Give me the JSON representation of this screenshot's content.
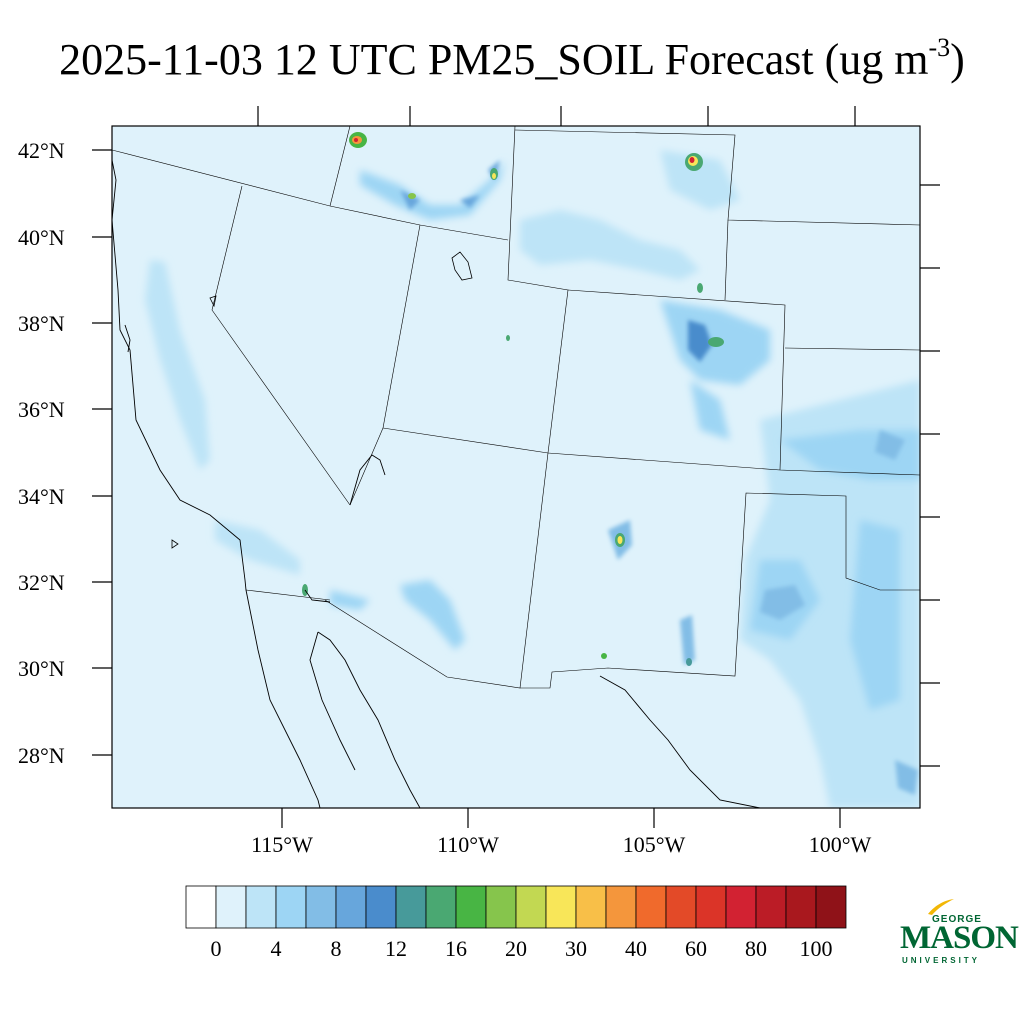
{
  "title": {
    "main": "2025-11-03 12 UTC PM25_SOIL Forecast (ug m",
    "superscript": "-3",
    "close": ")"
  },
  "map": {
    "lat_labels": [
      "42°N",
      "40°N",
      "38°N",
      "36°N",
      "34°N",
      "32°N",
      "30°N",
      "28°N"
    ],
    "lon_labels": [
      "115°W",
      "110°W",
      "105°W",
      "100°W"
    ],
    "background_color": "#dff2fb",
    "plumes": [
      {
        "name": "central-valley-ca",
        "level": 2
      },
      {
        "name": "southern-idaho",
        "level": 3
      },
      {
        "name": "southwest-wyoming",
        "level": 2
      },
      {
        "name": "colorado-front-range",
        "level": 4
      },
      {
        "name": "se-colorado",
        "level": 5
      },
      {
        "name": "sw-arizona",
        "level": 3
      },
      {
        "name": "southern-nm",
        "level": 4
      },
      {
        "name": "west-texas",
        "level": 3
      },
      {
        "name": "oklahoma-kansas",
        "level": 3
      }
    ],
    "hotspots": [
      {
        "name": "idaho-hotspot",
        "value": 60
      },
      {
        "name": "wyoming-hotspot",
        "value": 80
      },
      {
        "name": "idaho-east-hotspot",
        "value": 30
      },
      {
        "name": "colorado-hotspot",
        "value": 16
      },
      {
        "name": "nm-hotspot",
        "value": 30
      },
      {
        "name": "az-hotspot",
        "value": 16
      }
    ]
  },
  "colorbar": {
    "colors": [
      "#ffffff",
      "#dff2fb",
      "#bde4f7",
      "#9dd5f4",
      "#82bde6",
      "#67a6dc",
      "#4a8ccc",
      "#479a9a",
      "#4aa872",
      "#48b544",
      "#86c54c",
      "#c2d852",
      "#f8e659",
      "#f8bf48",
      "#f4963c",
      "#f06a2c",
      "#e34a28",
      "#db3428",
      "#d22232",
      "#bb1c26",
      "#a9181e",
      "#8f1218"
    ],
    "labels": [
      "0",
      "4",
      "8",
      "12",
      "16",
      "20",
      "30",
      "40",
      "60",
      "80",
      "100"
    ]
  },
  "logo": {
    "top": "GEORGE",
    "main": "MASON",
    "bottom": "UNIVERSITY"
  }
}
